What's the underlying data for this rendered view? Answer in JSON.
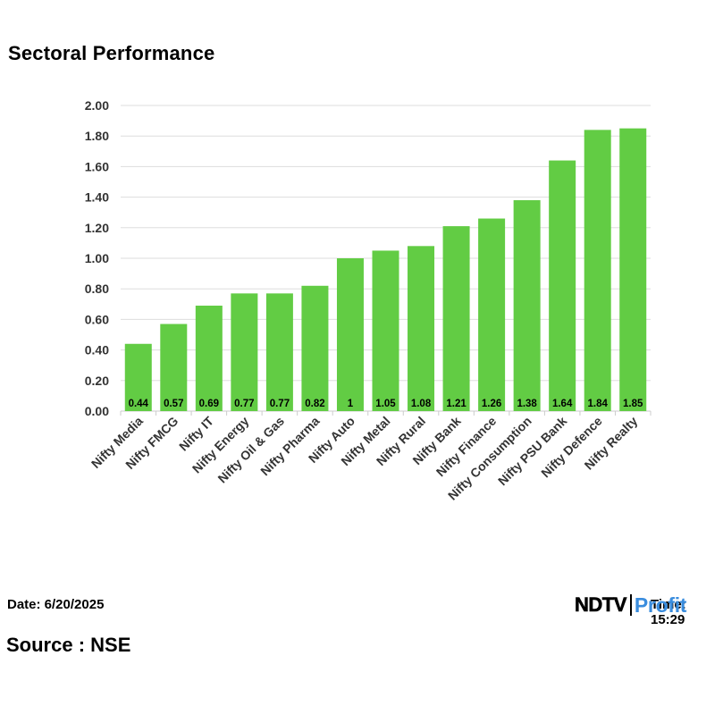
{
  "title": "Sectoral Performance",
  "footer": {
    "date": "Date: 6/20/2025",
    "source": "Source : NSE",
    "time": "Time: 15:29"
  },
  "logo": {
    "ndtv": "NDTV",
    "profit": "Profit"
  },
  "colors": {
    "bar": "#62cc44",
    "grid": "#dddddd",
    "text": "#000000",
    "tick": "#333333"
  },
  "chart_data": {
    "type": "bar",
    "title": "Sectoral Performance",
    "xlabel": "",
    "ylabel": "",
    "categories": [
      "Nifty Media",
      "Nifty FMCG",
      "Nifty IT",
      "Nifty Energy",
      "Nifty Oil & Gas",
      "Nifty Pharma",
      "Nifty Auto",
      "Nifty Metal",
      "Nifty Rural",
      "Nifty Bank",
      "Nifty Finance",
      "Nifty Consumption",
      "Nifty PSU Bank",
      "Nifty Defence",
      "Nifty Realty"
    ],
    "values": [
      0.44,
      0.57,
      0.69,
      0.77,
      0.77,
      0.82,
      1,
      1.05,
      1.08,
      1.21,
      1.26,
      1.38,
      1.64,
      1.84,
      1.85
    ],
    "value_labels": [
      "0.44",
      "0.57",
      "0.69",
      "0.77",
      "0.77",
      "0.82",
      "1",
      "1.05",
      "1.08",
      "1.21",
      "1.26",
      "1.38",
      "1.64",
      "1.84",
      "1.85"
    ],
    "ylim": [
      0,
      2
    ],
    "yticks": [
      "0.00",
      "0.20",
      "0.40",
      "0.60",
      "0.80",
      "1.00",
      "1.20",
      "1.40",
      "1.60",
      "1.80",
      "2.00"
    ],
    "grid": true,
    "legend": "none"
  }
}
